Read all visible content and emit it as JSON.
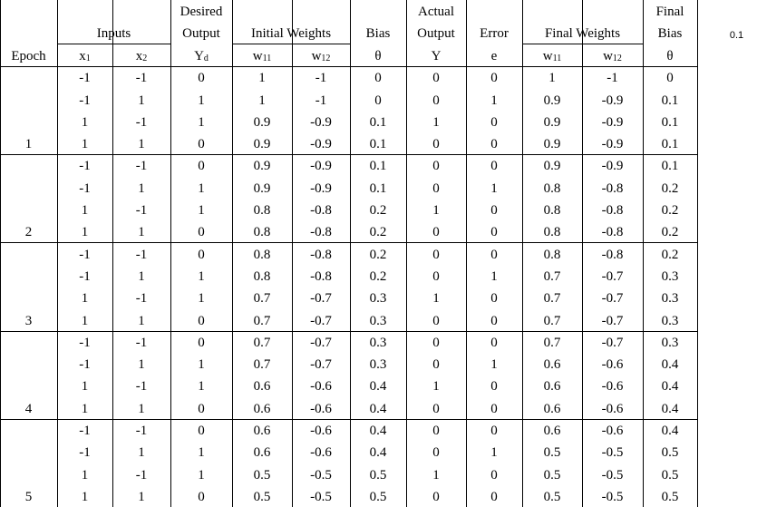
{
  "header": {
    "epoch": "Epoch",
    "inputs": "Inputs",
    "x1": "x1",
    "x2": "x2",
    "desired_1": "Desired",
    "desired_2": "Output",
    "yd": "Yd",
    "initial_weights": "Initial Weights",
    "w11": "w11",
    "w12": "w12",
    "bias": "Bias",
    "theta": "θ",
    "actual_1": "Actual",
    "actual_2": "Output",
    "y": "Y",
    "error": "Error",
    "e": "e",
    "final_weights": "Final Weights",
    "fw11": "w11",
    "fw12": "w12",
    "final_1": "Final",
    "final_2": "Bias",
    "final_theta": "θ"
  },
  "side_value": "0.1",
  "rows": [
    [
      "",
      "-1",
      "-1",
      "0",
      "1",
      "-1",
      "0",
      "0",
      "0",
      "1",
      "-1",
      "0"
    ],
    [
      "",
      "-1",
      "1",
      "1",
      "1",
      "-1",
      "0",
      "0",
      "1",
      "0.9",
      "-0.9",
      "0.1"
    ],
    [
      "",
      "1",
      "-1",
      "1",
      "0.9",
      "-0.9",
      "0.1",
      "1",
      "0",
      "0.9",
      "-0.9",
      "0.1"
    ],
    [
      "1",
      "1",
      "1",
      "0",
      "0.9",
      "-0.9",
      "0.1",
      "0",
      "0",
      "0.9",
      "-0.9",
      "0.1"
    ],
    [
      "",
      "-1",
      "-1",
      "0",
      "0.9",
      "-0.9",
      "0.1",
      "0",
      "0",
      "0.9",
      "-0.9",
      "0.1"
    ],
    [
      "",
      "-1",
      "1",
      "1",
      "0.9",
      "-0.9",
      "0.1",
      "0",
      "1",
      "0.8",
      "-0.8",
      "0.2"
    ],
    [
      "",
      "1",
      "-1",
      "1",
      "0.8",
      "-0.8",
      "0.2",
      "1",
      "0",
      "0.8",
      "-0.8",
      "0.2"
    ],
    [
      "2",
      "1",
      "1",
      "0",
      "0.8",
      "-0.8",
      "0.2",
      "0",
      "0",
      "0.8",
      "-0.8",
      "0.2"
    ],
    [
      "",
      "-1",
      "-1",
      "0",
      "0.8",
      "-0.8",
      "0.2",
      "0",
      "0",
      "0.8",
      "-0.8",
      "0.2"
    ],
    [
      "",
      "-1",
      "1",
      "1",
      "0.8",
      "-0.8",
      "0.2",
      "0",
      "1",
      "0.7",
      "-0.7",
      "0.3"
    ],
    [
      "",
      "1",
      "-1",
      "1",
      "0.7",
      "-0.7",
      "0.3",
      "1",
      "0",
      "0.7",
      "-0.7",
      "0.3"
    ],
    [
      "3",
      "1",
      "1",
      "0",
      "0.7",
      "-0.7",
      "0.3",
      "0",
      "0",
      "0.7",
      "-0.7",
      "0.3"
    ],
    [
      "",
      "-1",
      "-1",
      "0",
      "0.7",
      "-0.7",
      "0.3",
      "0",
      "0",
      "0.7",
      "-0.7",
      "0.3"
    ],
    [
      "",
      "-1",
      "1",
      "1",
      "0.7",
      "-0.7",
      "0.3",
      "0",
      "1",
      "0.6",
      "-0.6",
      "0.4"
    ],
    [
      "",
      "1",
      "-1",
      "1",
      "0.6",
      "-0.6",
      "0.4",
      "1",
      "0",
      "0.6",
      "-0.6",
      "0.4"
    ],
    [
      "4",
      "1",
      "1",
      "0",
      "0.6",
      "-0.6",
      "0.4",
      "0",
      "0",
      "0.6",
      "-0.6",
      "0.4"
    ],
    [
      "",
      "-1",
      "-1",
      "0",
      "0.6",
      "-0.6",
      "0.4",
      "0",
      "0",
      "0.6",
      "-0.6",
      "0.4"
    ],
    [
      "",
      "-1",
      "1",
      "1",
      "0.6",
      "-0.6",
      "0.4",
      "0",
      "1",
      "0.5",
      "-0.5",
      "0.5"
    ],
    [
      "",
      "1",
      "-1",
      "1",
      "0.5",
      "-0.5",
      "0.5",
      "1",
      "0",
      "0.5",
      "-0.5",
      "0.5"
    ],
    [
      "5",
      "1",
      "1",
      "0",
      "0.5",
      "-0.5",
      "0.5",
      "0",
      "0",
      "0.5",
      "-0.5",
      "0.5"
    ]
  ]
}
